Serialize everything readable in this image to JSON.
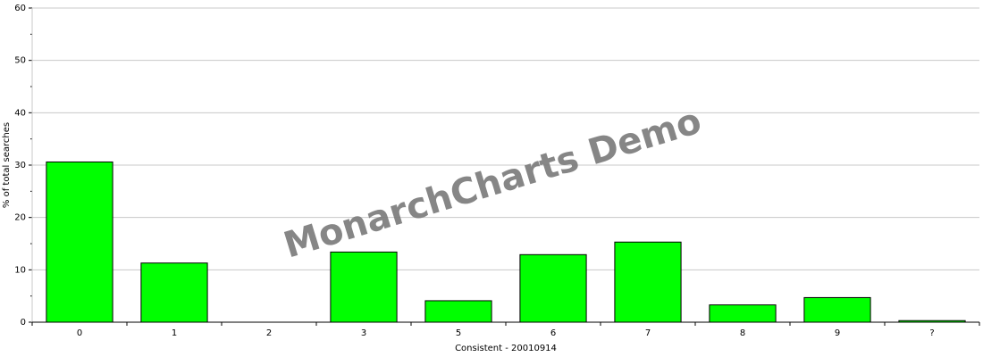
{
  "chart_data": {
    "type": "bar",
    "categories": [
      "0",
      "1",
      "2",
      "3",
      "5",
      "6",
      "7",
      "8",
      "9",
      "?"
    ],
    "values": [
      30.6,
      11.3,
      0,
      13.4,
      4.1,
      12.9,
      15.3,
      3.3,
      4.7,
      0.3
    ],
    "xlabel": "Consistent - 20010914",
    "ylabel": "% of total searches",
    "ylim": [
      0,
      60
    ],
    "yticks": [
      0,
      10,
      20,
      30,
      40,
      50,
      60
    ],
    "grid": true,
    "bar_color": "#00ff00",
    "bar_border_color": "#000000",
    "watermark": "MonarchCharts Demo"
  }
}
